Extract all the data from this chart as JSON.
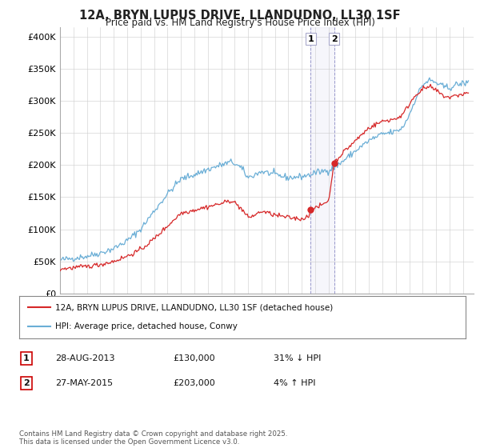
{
  "title": "12A, BRYN LUPUS DRIVE, LLANDUDNO, LL30 1SF",
  "subtitle": "Price paid vs. HM Land Registry's House Price Index (HPI)",
  "ylabel_ticks": [
    "£0",
    "£50K",
    "£100K",
    "£150K",
    "£200K",
    "£250K",
    "£300K",
    "£350K",
    "£400K"
  ],
  "ytick_values": [
    0,
    50000,
    100000,
    150000,
    200000,
    250000,
    300000,
    350000,
    400000
  ],
  "ylim": [
    0,
    415000
  ],
  "xlim_start": 1995.0,
  "xlim_end": 2025.8,
  "hpi_color": "#6aaed6",
  "price_color": "#d62728",
  "transaction_1_date": 2013.66,
  "transaction_1_price": 130000,
  "transaction_2_date": 2015.41,
  "transaction_2_price": 203000,
  "legend_label_red": "12A, BRYN LUPUS DRIVE, LLANDUDNO, LL30 1SF (detached house)",
  "legend_label_blue": "HPI: Average price, detached house, Conwy",
  "table_rows": [
    {
      "num": "1",
      "date": "28-AUG-2013",
      "price": "£130,000",
      "change": "31% ↓ HPI"
    },
    {
      "num": "2",
      "date": "27-MAY-2015",
      "price": "£203,000",
      "change": "4% ↑ HPI"
    }
  ],
  "footnote": "Contains HM Land Registry data © Crown copyright and database right 2025.\nThis data is licensed under the Open Government Licence v3.0.",
  "background_color": "#ffffff",
  "grid_color": "#cccccc",
  "hpi_anchors": [
    [
      1995.0,
      52000
    ],
    [
      1996.0,
      55000
    ],
    [
      1997.0,
      58000
    ],
    [
      1998.0,
      63000
    ],
    [
      1999.0,
      70000
    ],
    [
      2000.0,
      82000
    ],
    [
      2001.0,
      100000
    ],
    [
      2002.0,
      128000
    ],
    [
      2003.0,
      155000
    ],
    [
      2004.0,
      178000
    ],
    [
      2005.0,
      185000
    ],
    [
      2006.0,
      193000
    ],
    [
      2007.0,
      200000
    ],
    [
      2007.8,
      205000
    ],
    [
      2008.5,
      195000
    ],
    [
      2009.0,
      180000
    ],
    [
      2009.5,
      185000
    ],
    [
      2010.0,
      190000
    ],
    [
      2011.0,
      185000
    ],
    [
      2012.0,
      180000
    ],
    [
      2013.0,
      182000
    ],
    [
      2013.66,
      185000
    ],
    [
      2014.0,
      188000
    ],
    [
      2015.0,
      192000
    ],
    [
      2015.41,
      196000
    ],
    [
      2016.0,
      205000
    ],
    [
      2017.0,
      222000
    ],
    [
      2018.0,
      238000
    ],
    [
      2019.0,
      248000
    ],
    [
      2020.0,
      252000
    ],
    [
      2020.5,
      258000
    ],
    [
      2021.0,
      278000
    ],
    [
      2021.5,
      305000
    ],
    [
      2022.0,
      325000
    ],
    [
      2022.5,
      332000
    ],
    [
      2023.0,
      328000
    ],
    [
      2023.5,
      322000
    ],
    [
      2024.0,
      320000
    ],
    [
      2024.5,
      325000
    ],
    [
      2025.3,
      328000
    ]
  ],
  "price_anchors": [
    [
      1995.0,
      38000
    ],
    [
      1996.0,
      40000
    ],
    [
      1997.0,
      42000
    ],
    [
      1998.0,
      45000
    ],
    [
      1999.0,
      50000
    ],
    [
      2000.0,
      58000
    ],
    [
      2001.0,
      68000
    ],
    [
      2002.0,
      85000
    ],
    [
      2003.0,
      105000
    ],
    [
      2004.0,
      125000
    ],
    [
      2005.0,
      130000
    ],
    [
      2006.0,
      135000
    ],
    [
      2007.0,
      140000
    ],
    [
      2007.8,
      145000
    ],
    [
      2008.5,
      132000
    ],
    [
      2009.0,
      118000
    ],
    [
      2009.5,
      122000
    ],
    [
      2010.0,
      128000
    ],
    [
      2011.0,
      122000
    ],
    [
      2012.0,
      118000
    ],
    [
      2013.0,
      116000
    ],
    [
      2013.5,
      120000
    ],
    [
      2013.66,
      130000
    ],
    [
      2014.0,
      132000
    ],
    [
      2014.5,
      138000
    ],
    [
      2015.0,
      145000
    ],
    [
      2015.41,
      203000
    ],
    [
      2016.0,
      218000
    ],
    [
      2017.0,
      238000
    ],
    [
      2018.0,
      258000
    ],
    [
      2019.0,
      268000
    ],
    [
      2020.0,
      272000
    ],
    [
      2020.5,
      278000
    ],
    [
      2021.0,
      295000
    ],
    [
      2021.5,
      310000
    ],
    [
      2022.0,
      318000
    ],
    [
      2022.5,
      322000
    ],
    [
      2023.0,
      316000
    ],
    [
      2023.5,
      308000
    ],
    [
      2024.0,
      305000
    ],
    [
      2024.5,
      308000
    ],
    [
      2025.3,
      312000
    ]
  ]
}
